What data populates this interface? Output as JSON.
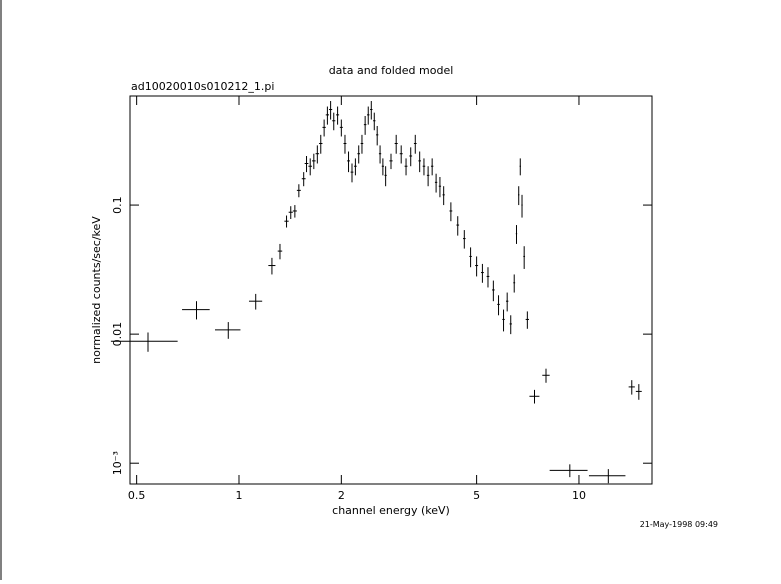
{
  "chart_data": {
    "type": "scatter",
    "title": "data and folded model",
    "subtitle": "ad10020010s010212_1.pi",
    "xlabel": "channel energy (keV)",
    "ylabel": "normalized counts/sec/keV",
    "annotation": "21-May-1998 09:49",
    "xscale": "log",
    "yscale": "log",
    "xlim": [
      0.478,
      16.4
    ],
    "ylim": [
      0.00069,
      0.7
    ],
    "xticks": [
      0.5,
      1,
      2,
      5,
      10
    ],
    "yticks": [
      {
        "value": 0.001,
        "label": "10⁻³"
      },
      0.01,
      0.1
    ],
    "series": [
      {
        "color": "#000000",
        "x": [
          0.54,
          0.75,
          0.93,
          1.12,
          1.25,
          1.32,
          1.38,
          1.42,
          1.46,
          1.5,
          1.55,
          1.58,
          1.62,
          1.66,
          1.7,
          1.74,
          1.78,
          1.82,
          1.86,
          1.9,
          1.95,
          2.0,
          2.05,
          2.1,
          2.15,
          2.2,
          2.25,
          2.3,
          2.35,
          2.4,
          2.45,
          2.5,
          2.55,
          2.6,
          2.65,
          2.7,
          2.8,
          2.9,
          3.0,
          3.1,
          3.2,
          3.3,
          3.4,
          3.5,
          3.6,
          3.7,
          3.8,
          3.9,
          4.0,
          4.2,
          4.4,
          4.6,
          4.8,
          5.0,
          5.2,
          5.4,
          5.6,
          5.8,
          6.0,
          6.15,
          6.3,
          6.45,
          6.55,
          6.65,
          6.72,
          6.8,
          6.9,
          7.05,
          7.4,
          8.0,
          9.4,
          12.2,
          14.3,
          15.0
        ],
        "xerr": [
          0.12,
          0.07,
          0.08,
          0.05,
          0.03,
          0.02,
          0.02,
          0.02,
          0.02,
          0.02,
          0.02,
          0.02,
          0.02,
          0.02,
          0.02,
          0.02,
          0.02,
          0.02,
          0.02,
          0.02,
          0.02,
          0.02,
          0.02,
          0.02,
          0.02,
          0.02,
          0.02,
          0.02,
          0.02,
          0.02,
          0.02,
          0.02,
          0.02,
          0.02,
          0.02,
          0.02,
          0.03,
          0.03,
          0.03,
          0.03,
          0.03,
          0.03,
          0.03,
          0.03,
          0.03,
          0.03,
          0.03,
          0.03,
          0.03,
          0.04,
          0.04,
          0.04,
          0.04,
          0.05,
          0.05,
          0.05,
          0.05,
          0.05,
          0.05,
          0.05,
          0.05,
          0.04,
          0.03,
          0.03,
          0.03,
          0.03,
          0.04,
          0.08,
          0.25,
          0.2,
          1.2,
          1.5,
          0.3,
          0.3
        ],
        "values": [
          0.0088,
          0.0155,
          0.0108,
          0.018,
          0.034,
          0.044,
          0.075,
          0.088,
          0.09,
          0.13,
          0.16,
          0.21,
          0.2,
          0.22,
          0.25,
          0.3,
          0.4,
          0.5,
          0.55,
          0.45,
          0.5,
          0.4,
          0.3,
          0.22,
          0.18,
          0.2,
          0.25,
          0.3,
          0.42,
          0.5,
          0.55,
          0.45,
          0.35,
          0.25,
          0.2,
          0.17,
          0.22,
          0.3,
          0.25,
          0.2,
          0.24,
          0.3,
          0.22,
          0.2,
          0.17,
          0.2,
          0.15,
          0.14,
          0.12,
          0.09,
          0.07,
          0.055,
          0.04,
          0.034,
          0.03,
          0.028,
          0.022,
          0.017,
          0.013,
          0.018,
          0.012,
          0.025,
          0.06,
          0.12,
          0.2,
          0.1,
          0.04,
          0.013,
          0.0033,
          0.0048,
          0.00088,
          0.0008,
          0.0039,
          0.0036
        ],
        "yerr": [
          0.0015,
          0.0025,
          0.0016,
          0.0025,
          0.005,
          0.006,
          0.008,
          0.01,
          0.01,
          0.015,
          0.02,
          0.03,
          0.03,
          0.03,
          0.04,
          0.05,
          0.06,
          0.08,
          0.09,
          0.07,
          0.08,
          0.06,
          0.05,
          0.04,
          0.03,
          0.03,
          0.04,
          0.05,
          0.07,
          0.08,
          0.09,
          0.07,
          0.06,
          0.04,
          0.03,
          0.03,
          0.03,
          0.05,
          0.04,
          0.03,
          0.04,
          0.05,
          0.04,
          0.03,
          0.03,
          0.03,
          0.025,
          0.025,
          0.02,
          0.015,
          0.012,
          0.009,
          0.007,
          0.006,
          0.005,
          0.005,
          0.004,
          0.003,
          0.0025,
          0.003,
          0.002,
          0.004,
          0.01,
          0.02,
          0.03,
          0.02,
          0.008,
          0.002,
          0.0004,
          0.0006,
          0.0001,
          0.0001,
          0.0005,
          0.0005
        ]
      }
    ]
  }
}
